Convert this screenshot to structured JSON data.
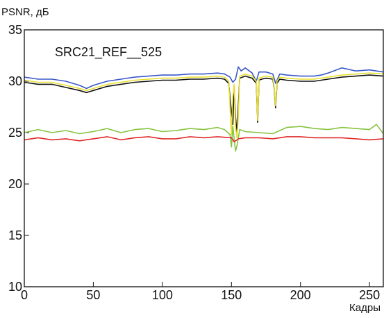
{
  "chart_data": {
    "type": "line",
    "title": "SRC21_REF__525",
    "ylabel": "PSNR, дБ",
    "xlabel": "Кадры",
    "xlim": [
      0,
      260
    ],
    "ylim": [
      10,
      35
    ],
    "xticks": [
      0,
      50,
      100,
      150,
      200,
      250
    ],
    "yticks": [
      10,
      15,
      20,
      25,
      30,
      35
    ],
    "grid": false,
    "legend": "none",
    "series": [
      {
        "color": "#3a58c8",
        "x": [
          0,
          10,
          20,
          30,
          40,
          45,
          50,
          60,
          70,
          80,
          90,
          100,
          110,
          120,
          130,
          140,
          145,
          149,
          151,
          153,
          155,
          157,
          160,
          165,
          168,
          170,
          175,
          180,
          182,
          185,
          190,
          200,
          210,
          215,
          220,
          230,
          240,
          250,
          260
        ],
        "y": [
          30.4,
          30.2,
          30.2,
          30.0,
          29.6,
          29.3,
          29.6,
          30.0,
          30.2,
          30.4,
          30.5,
          30.6,
          30.6,
          30.7,
          30.7,
          30.8,
          30.7,
          30.4,
          29.9,
          30.2,
          31.4,
          31.0,
          31.3,
          30.8,
          30.0,
          30.9,
          30.9,
          30.7,
          29.8,
          30.7,
          30.6,
          30.5,
          30.5,
          30.6,
          30.8,
          31.3,
          31.0,
          31.1,
          30.9
        ]
      },
      {
        "color": "#111111",
        "x": [
          0,
          10,
          20,
          30,
          40,
          45,
          50,
          60,
          70,
          80,
          90,
          100,
          110,
          120,
          130,
          140,
          145,
          148,
          150,
          151,
          152,
          153,
          154,
          156,
          160,
          165,
          168,
          169,
          170,
          172,
          175,
          180,
          181,
          182,
          183,
          185,
          190,
          200,
          210,
          220,
          230,
          240,
          250,
          260
        ],
        "y": [
          29.9,
          29.7,
          29.7,
          29.4,
          29.1,
          28.9,
          29.1,
          29.5,
          29.7,
          29.9,
          30.0,
          30.1,
          30.1,
          30.2,
          30.2,
          30.3,
          30.2,
          29.8,
          27.0,
          25.8,
          29.5,
          26.5,
          25.0,
          30.3,
          30.5,
          30.3,
          29.8,
          26.0,
          30.1,
          30.2,
          30.3,
          30.2,
          29.3,
          27.4,
          29.8,
          30.2,
          30.1,
          30.0,
          30.0,
          30.2,
          30.4,
          30.5,
          30.6,
          30.5
        ]
      },
      {
        "color": "#e8e030",
        "x": [
          0,
          10,
          20,
          30,
          40,
          45,
          50,
          60,
          70,
          80,
          90,
          100,
          110,
          120,
          130,
          140,
          145,
          148,
          149,
          150,
          151,
          152,
          153,
          154,
          155,
          156,
          160,
          165,
          168,
          169,
          170,
          172,
          175,
          180,
          181,
          182,
          183,
          185,
          190,
          200,
          210,
          220,
          230,
          240,
          250,
          260
        ],
        "y": [
          30.1,
          29.9,
          29.9,
          29.6,
          29.3,
          29.1,
          29.3,
          29.7,
          29.9,
          30.1,
          30.2,
          30.3,
          30.3,
          30.4,
          30.4,
          30.5,
          30.4,
          30.0,
          27.5,
          24.8,
          28.5,
          29.7,
          25.5,
          24.5,
          26.5,
          30.5,
          30.7,
          30.5,
          30.0,
          26.2,
          30.3,
          30.4,
          30.5,
          30.4,
          29.4,
          27.6,
          30.0,
          30.4,
          30.3,
          30.2,
          30.2,
          30.4,
          30.6,
          30.7,
          30.8,
          30.7
        ]
      },
      {
        "color": "#86c440",
        "x": [
          0,
          10,
          20,
          30,
          40,
          50,
          60,
          70,
          80,
          90,
          100,
          110,
          120,
          130,
          140,
          145,
          149,
          150,
          151,
          152,
          153,
          154,
          156,
          160,
          170,
          180,
          190,
          200,
          210,
          220,
          230,
          240,
          250,
          255,
          260
        ],
        "y": [
          25.0,
          25.3,
          25.0,
          25.2,
          24.9,
          25.1,
          25.4,
          25.0,
          25.3,
          25.4,
          25.1,
          25.2,
          25.4,
          25.3,
          25.5,
          25.3,
          24.8,
          23.6,
          25.6,
          24.4,
          23.2,
          23.7,
          25.3,
          25.1,
          25.0,
          24.9,
          25.5,
          25.6,
          25.4,
          25.3,
          25.5,
          25.4,
          25.3,
          25.8,
          24.9
        ]
      },
      {
        "color": "#e02828",
        "x": [
          0,
          10,
          20,
          30,
          40,
          50,
          60,
          70,
          80,
          90,
          100,
          110,
          120,
          130,
          140,
          150,
          152,
          155,
          160,
          170,
          180,
          190,
          200,
          210,
          220,
          230,
          240,
          250,
          260
        ],
        "y": [
          24.3,
          24.5,
          24.3,
          24.4,
          24.2,
          24.4,
          24.6,
          24.3,
          24.5,
          24.6,
          24.4,
          24.4,
          24.6,
          24.5,
          24.6,
          24.5,
          24.1,
          24.4,
          24.5,
          24.5,
          24.4,
          24.6,
          24.6,
          24.5,
          24.5,
          24.5,
          24.4,
          24.3,
          24.4
        ]
      }
    ]
  }
}
